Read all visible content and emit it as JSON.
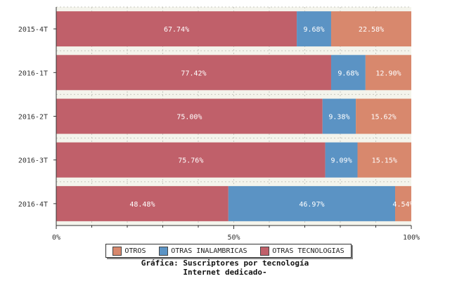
{
  "chart_data": {
    "type": "bar",
    "orientation": "horizontal",
    "stacked": true,
    "percent": true,
    "categories": [
      "2015-4T",
      "2016-1T",
      "2016-2T",
      "2016-3T",
      "2016-4T"
    ],
    "series": [
      {
        "name": "OTRAS TECNOLOGIAS",
        "color": "#c0606a",
        "values": [
          67.74,
          77.42,
          75.0,
          75.76,
          48.48
        ],
        "labels": [
          "67.74%",
          "77.42%",
          "75.00%",
          "75.76%",
          "48.48%"
        ]
      },
      {
        "name": "OTRAS INALAMBRICAS",
        "color": "#5b93c4",
        "values": [
          9.68,
          9.68,
          9.38,
          9.09,
          46.97
        ],
        "labels": [
          "9.68%",
          "9.68%",
          "9.38%",
          "9.09%",
          "46.97%"
        ]
      },
      {
        "name": "OTROS",
        "color": "#d8886d",
        "values": [
          22.58,
          12.9,
          15.62,
          15.15,
          4.54
        ],
        "labels": [
          "22.58%",
          "12.90%",
          "15.62%",
          "15.15%",
          "4.54%"
        ]
      }
    ],
    "xlim": [
      0,
      100
    ],
    "xticks": [
      "0%",
      "50%",
      "100%"
    ],
    "grid": true,
    "legend_order": [
      "OTROS",
      "OTRAS INALAMBRICAS",
      "OTRAS TECNOLOGIAS"
    ],
    "legend_position": "bottom"
  },
  "caption": {
    "line1": "Gráfica: Suscriptores por tecnología",
    "line2": "Internet dedicado-"
  }
}
